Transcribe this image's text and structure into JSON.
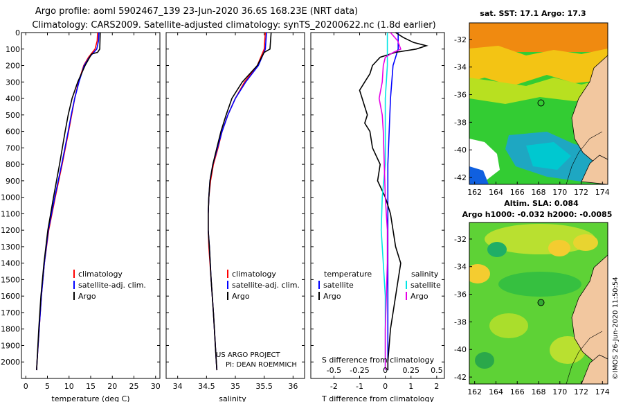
{
  "header": {
    "line1": "Argo profile: aoml 5902467_139 23-Jun-2020 36.6S 168.23E (NRT data)",
    "line2": "Climatology: CARS2009. Satellite-adjusted climatology: synTS_20200622.nc (1.8d earlier)"
  },
  "colors": {
    "climatology": "#ff0000",
    "satellite": "#0000ff",
    "argo": "#000000",
    "satellite_sal": "#00e5e5",
    "argo_sal": "#e600e6",
    "land": "#f2c79f"
  },
  "chart_data": [
    {
      "type": "line",
      "id": "temperature",
      "xlabel": "temperature (deg C)",
      "xlim": [
        -1,
        31
      ],
      "xticks": [
        "0",
        "5",
        "10",
        "15",
        "20",
        "25",
        "30"
      ],
      "ylim": [
        2100,
        0
      ],
      "yticks": [
        "0",
        "100",
        "200",
        "300",
        "400",
        "500",
        "600",
        "700",
        "800",
        "900",
        "1000",
        "1100",
        "1200",
        "1300",
        "1400",
        "1500",
        "1600",
        "1700",
        "1800",
        "1900",
        "2000"
      ],
      "legend": [
        "climatology",
        "satellite-adj. clim.",
        "Argo"
      ],
      "series": [
        {
          "name": "climatology",
          "depth": [
            0,
            50,
            100,
            150,
            200,
            300,
            400,
            500,
            600,
            800,
            1000,
            1200,
            1400,
            1600,
            1800,
            2000,
            2050
          ],
          "values": [
            16.6,
            16.5,
            16.0,
            14.5,
            13.4,
            12.2,
            11.3,
            10.6,
            9.9,
            8.4,
            6.8,
            5.3,
            4.3,
            3.6,
            3.1,
            2.6,
            2.5
          ]
        },
        {
          "name": "satellite-adj. clim.",
          "depth": [
            0,
            50,
            100,
            150,
            200,
            300,
            400,
            500,
            600,
            800,
            1000,
            1200,
            1400,
            1600,
            1800,
            2000,
            2050
          ],
          "values": [
            16.9,
            16.8,
            16.4,
            14.7,
            13.5,
            12.3,
            11.3,
            10.5,
            9.8,
            8.3,
            6.7,
            5.2,
            4.3,
            3.6,
            3.1,
            2.6,
            2.5
          ]
        },
        {
          "name": "Argo",
          "depth": [
            0,
            100,
            120,
            130,
            200,
            300,
            400,
            500,
            600,
            800,
            1000,
            1200,
            1400,
            1600,
            1800,
            2000,
            2050
          ],
          "values": [
            17.2,
            17.1,
            16.6,
            15.2,
            13.7,
            12.0,
            10.7,
            9.8,
            9.1,
            7.8,
            6.4,
            5.1,
            4.2,
            3.5,
            3.0,
            2.6,
            2.5
          ]
        }
      ]
    },
    {
      "type": "line",
      "id": "salinity",
      "xlabel": "salinity",
      "xlim": [
        33.8,
        36.2
      ],
      "xticks": [
        "34",
        "34.5",
        "35",
        "35.5",
        "36"
      ],
      "ylim": [
        2100,
        0
      ],
      "legend": [
        "climatology",
        "satellite-adj. clim.",
        "Argo"
      ],
      "annotation": [
        "US ARGO PROJECT",
        "PI: DEAN ROEMMICH"
      ],
      "series": [
        {
          "name": "climatology",
          "depth": [
            0,
            100,
            200,
            300,
            400,
            500,
            600,
            700,
            800,
            900,
            1000,
            1100,
            1200,
            1300,
            1500,
            1700,
            2000,
            2050
          ],
          "values": [
            35.52,
            35.5,
            35.38,
            35.16,
            35.0,
            34.87,
            34.77,
            34.7,
            34.62,
            34.57,
            34.54,
            34.53,
            34.53,
            34.54,
            34.58,
            34.62,
            34.67,
            34.68
          ]
        },
        {
          "name": "satellite-adj. clim.",
          "depth": [
            0,
            100,
            200,
            300,
            400,
            500,
            600,
            700,
            800,
            900,
            1000,
            1100,
            1200,
            1300,
            1500,
            1700,
            2000,
            2050
          ],
          "values": [
            35.54,
            35.52,
            35.4,
            35.18,
            35.0,
            34.87,
            34.77,
            34.69,
            34.61,
            34.56,
            34.54,
            34.53,
            34.53,
            34.55,
            34.58,
            34.62,
            34.67,
            34.68
          ]
        },
        {
          "name": "Argo",
          "depth": [
            0,
            100,
            120,
            200,
            300,
            400,
            500,
            600,
            700,
            800,
            900,
            1000,
            1100,
            1200,
            1300,
            1500,
            1700,
            2000,
            2050
          ],
          "values": [
            35.62,
            35.6,
            35.5,
            35.38,
            35.12,
            34.94,
            34.84,
            34.75,
            34.68,
            34.61,
            34.56,
            34.54,
            34.53,
            34.53,
            34.55,
            34.58,
            34.62,
            34.67,
            34.68
          ]
        }
      ]
    },
    {
      "type": "line",
      "id": "difference",
      "xlabel": "T difference from climatology",
      "xlabel_top": "S difference from climatology",
      "t_xlim": [
        -2.9,
        2.3
      ],
      "t_xticks": [
        "-2",
        "-1",
        "0",
        "1",
        "2"
      ],
      "s_xticks": [
        "-0.5",
        "-0.25",
        "0",
        "0.25",
        "0.5"
      ],
      "ylim": [
        2100,
        0
      ],
      "legend": {
        "temperature_title": "temperature",
        "salinity_title": "salinity",
        "temperature": [
          "satellite",
          "Argo"
        ],
        "salinity": [
          "satellite",
          "Argo"
        ]
      },
      "series": [
        {
          "name": "temperature satellite",
          "depth": [
            0,
            50,
            100,
            150,
            200,
            400,
            600,
            800,
            1000,
            1200,
            1500,
            1800,
            2050
          ],
          "values": [
            0.5,
            0.5,
            0.5,
            0.4,
            0.3,
            0.2,
            0.15,
            0.1,
            0.1,
            0.1,
            0.1,
            0.1,
            0.1
          ]
        },
        {
          "name": "temperature Argo",
          "depth": [
            0,
            30,
            60,
            80,
            100,
            120,
            150,
            200,
            250,
            300,
            350,
            400,
            450,
            500,
            550,
            600,
            700,
            800,
            900,
            1000,
            1100,
            1200,
            1300,
            1400,
            1500,
            1600,
            1800,
            2000,
            2050
          ],
          "values": [
            0.4,
            0.7,
            1.1,
            1.6,
            1.2,
            0.4,
            -0.2,
            -0.5,
            -0.6,
            -0.8,
            -1.0,
            -0.9,
            -0.8,
            -0.7,
            -0.8,
            -0.6,
            -0.5,
            -0.2,
            -0.3,
            0.0,
            0.2,
            0.3,
            0.4,
            0.6,
            0.5,
            0.4,
            0.2,
            0.1,
            0.1
          ]
        },
        {
          "name": "salinity satellite",
          "depth": [
            0,
            100,
            200,
            400,
            600,
            800,
            1000,
            1200,
            1400,
            1600,
            2050
          ],
          "values": [
            0.02,
            0.02,
            0.02,
            0.0,
            0.0,
            0.0,
            -0.03,
            -0.04,
            -0.02,
            0.0,
            0.0
          ]
        },
        {
          "name": "salinity Argo",
          "depth": [
            0,
            50,
            100,
            120,
            150,
            200,
            300,
            400,
            500,
            600,
            800,
            1000,
            1200,
            1400,
            1600,
            1800,
            2050
          ],
          "values": [
            0.05,
            0.12,
            0.15,
            0.08,
            0.0,
            -0.02,
            -0.03,
            -0.06,
            -0.03,
            -0.02,
            -0.01,
            0.0,
            0.02,
            0.02,
            0.01,
            0.0,
            0.0
          ]
        }
      ]
    },
    {
      "type": "heatmap",
      "id": "sst_map",
      "title": "sat. SST: 17.1  Argo: 17.3",
      "xticks": [
        "162",
        "164",
        "166",
        "168",
        "170",
        "172",
        "174"
      ],
      "yticks": [
        "-32",
        "-34",
        "-36",
        "-38",
        "-40",
        "-42"
      ],
      "xlim": [
        161.5,
        174.5
      ],
      "ylim": [
        -42.5,
        -30.8
      ],
      "profile_location": [
        168.23,
        -36.6
      ]
    },
    {
      "type": "heatmap",
      "id": "sla_map",
      "title_line1": "Altim. SLA: 0.084",
      "title_line2": "Argo h1000: -0.032 h2000: -0.0085",
      "xticks": [
        "162",
        "164",
        "166",
        "168",
        "170",
        "172",
        "174"
      ],
      "yticks": [
        "-32",
        "-34",
        "-36",
        "-38",
        "-40",
        "-42"
      ],
      "xlim": [
        161.5,
        174.5
      ],
      "ylim": [
        -42.5,
        -30.8
      ],
      "profile_location": [
        168.23,
        -36.6
      ]
    }
  ],
  "side_label": "©IMOS 26-Jun-2020 11:50:54"
}
